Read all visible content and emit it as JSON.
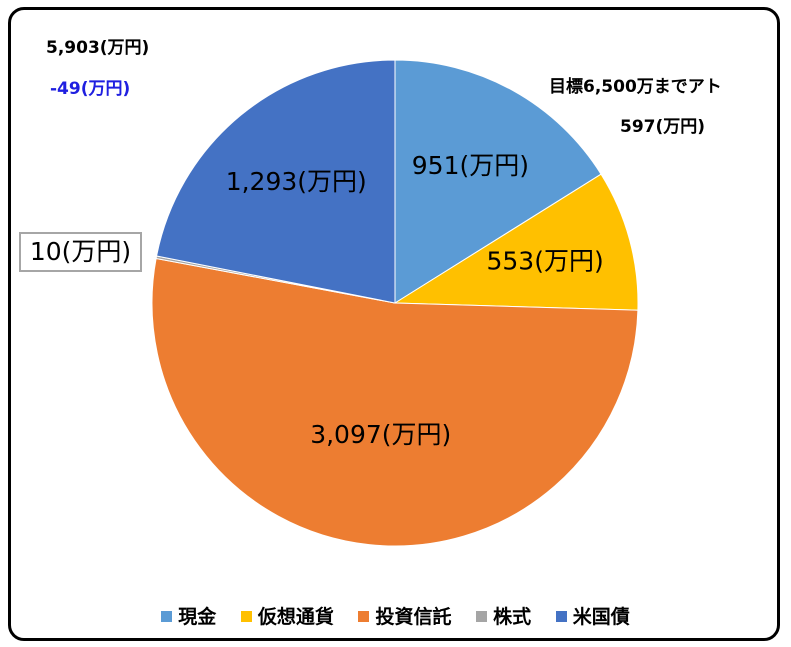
{
  "notes": {
    "total": "5,903(万円)",
    "diff": "-49(万円)",
    "target": "目標6,500万までアト",
    "remaining": "597(万円)"
  },
  "colors": {
    "diff_text": "#1f1fe0",
    "callout_border": "#a6a6a6"
  },
  "chart_data": {
    "type": "pie",
    "unit": "万円",
    "grid": false,
    "legend_position": "bottom",
    "slices": [
      {
        "name": "現金",
        "value": 951,
        "label": "951(万円)",
        "color": "#5b9bd5"
      },
      {
        "name": "仮想通貨",
        "value": 553,
        "label": "553(万円)",
        "color": "#ffc000"
      },
      {
        "name": "投資信託",
        "value": 3097,
        "label": "3,097(万円)",
        "color": "#ed7d31"
      },
      {
        "name": "株式",
        "value": 10,
        "label": "10(万円)",
        "color": "#a5a5a5"
      },
      {
        "name": "米国債",
        "value": 1293,
        "label": "1,293(万円)",
        "color": "#4472c4"
      }
    ]
  }
}
